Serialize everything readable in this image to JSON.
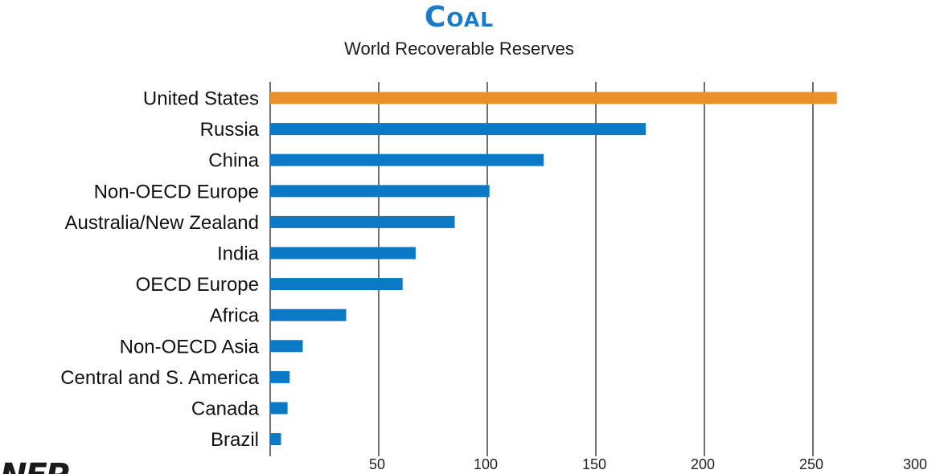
{
  "chart_data": {
    "type": "bar",
    "orientation": "horizontal",
    "title": "Coal",
    "subtitle": "World Recoverable Reserves",
    "categories": [
      "United States",
      "Russia",
      "China",
      "Non-OECD Europe",
      "Australia/New Zealand",
      "India",
      "OECD Europe",
      "Africa",
      "Non-OECD Asia",
      "Central and S. America",
      "Canada",
      "Brazil"
    ],
    "values": [
      261,
      173,
      126,
      101,
      85,
      67,
      61,
      35,
      15,
      9,
      8,
      5
    ],
    "bar_colors": [
      "#e8902a",
      "#0b79c6",
      "#0b79c6",
      "#0b79c6",
      "#0b79c6",
      "#0b79c6",
      "#0b79c6",
      "#0b79c6",
      "#0b79c6",
      "#0b79c6",
      "#0b79c6",
      "#0b79c6"
    ],
    "highlight_color": "#e8902a",
    "bar_color": "#0b79c6",
    "xlim": [
      0,
      300
    ],
    "xticks": [
      50,
      100,
      150,
      200,
      250,
      300
    ],
    "xlabel": "",
    "ylabel": "",
    "grid": "vertical"
  }
}
